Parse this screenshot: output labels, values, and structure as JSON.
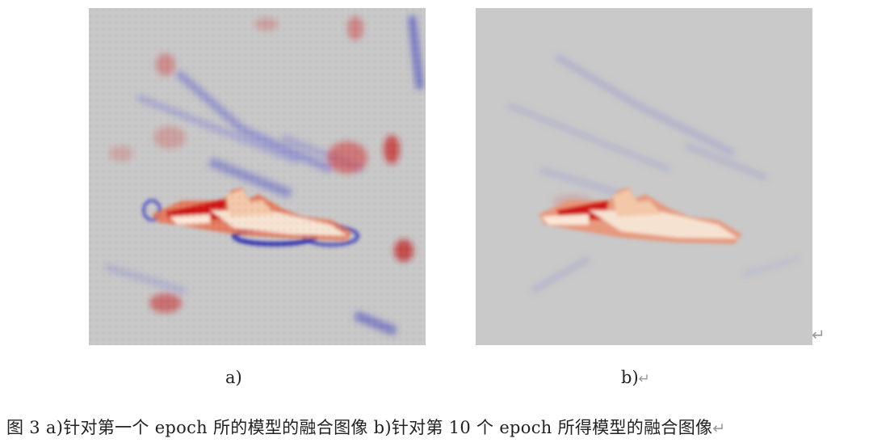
{
  "figure": {
    "panel_a_label": "a)",
    "panel_b_label": "b)",
    "return_mark": "↵",
    "caption": "图 3 a)针对第一个 epoch 所的模型的融合图像 b)针对第 10 个 epoch 所得模型的融合图像"
  },
  "colors": {
    "background_gray": "#c8c8c8",
    "heat_red": "#d01818",
    "heat_blue": "#2828c0",
    "ship_highlight": "#f6e2d0"
  }
}
